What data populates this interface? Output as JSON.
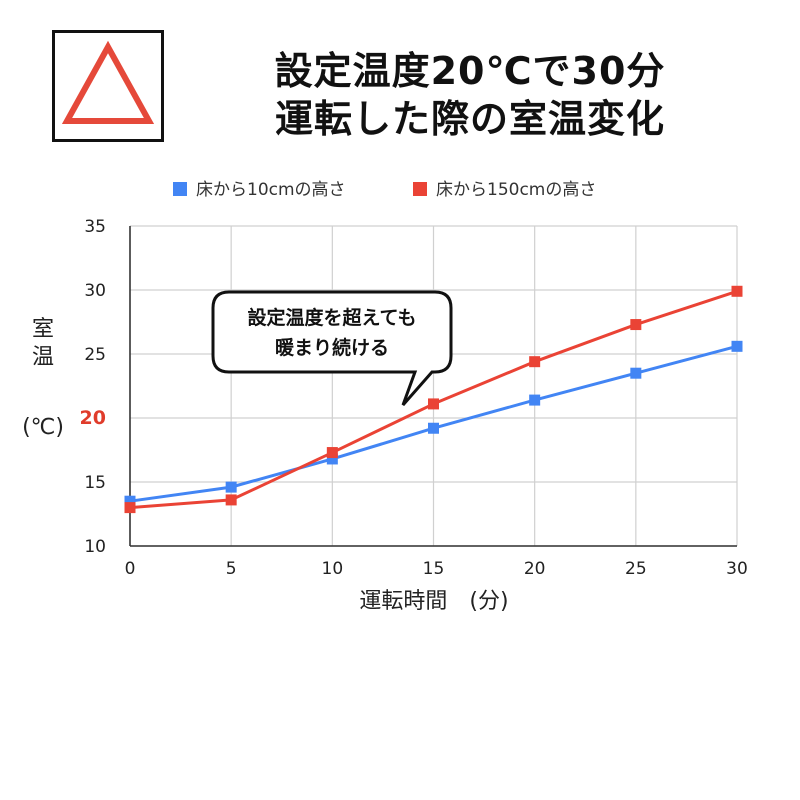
{
  "header": {
    "title_line1": "設定温度20℃で30分",
    "title_line2": "運転した際の室温変化",
    "icon": "warning-triangle-icon"
  },
  "chart_data": {
    "type": "line",
    "x": [
      0,
      5,
      10,
      15,
      20,
      25,
      30
    ],
    "xlabel": "運転時間　(分)",
    "ylabel_chars": [
      "室",
      "温"
    ],
    "ylabel_unit": "(℃)",
    "xlim": [
      0,
      30
    ],
    "ylim": [
      10,
      35
    ],
    "x_ticks": [
      0,
      5,
      10,
      15,
      20,
      25,
      30
    ],
    "y_ticks": [
      10,
      15,
      20,
      25,
      30,
      35
    ],
    "highlight_y_tick": 20,
    "grid": true,
    "legend_position": "top",
    "series": [
      {
        "name": "床から10cmの高さ",
        "color": "#4285f4",
        "values": [
          13.5,
          14.6,
          16.8,
          19.2,
          21.4,
          23.5,
          25.6
        ]
      },
      {
        "name": "床から150cmの高さ",
        "color": "#ea4335",
        "values": [
          13.0,
          13.6,
          17.3,
          21.1,
          24.4,
          27.3,
          29.9
        ]
      }
    ],
    "annotation": {
      "lines": [
        "設定温度を超えても",
        "暖まり続ける"
      ],
      "points_to_x": 15
    },
    "colors": {
      "highlight_tick": "#e03c2b",
      "grid": "#d0d0d0",
      "axis": "#333333"
    }
  }
}
